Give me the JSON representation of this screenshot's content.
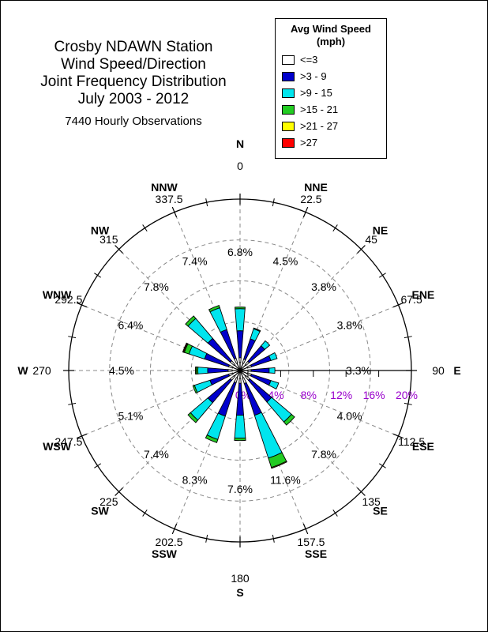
{
  "chart_data": {
    "type": "wind-rose",
    "title_lines": [
      "Crosby NDAWN Station",
      "Wind Speed/Direction",
      "Joint Frequency Distribution",
      "July 2003 - 2012"
    ],
    "subtitle": "7440 Hourly Observations",
    "legend": {
      "title_lines": [
        "Avg Wind Speed",
        "(mph)"
      ],
      "items": [
        {
          "label": "<=3",
          "color": "#ffffff"
        },
        {
          "label": ">3 - 9",
          "color": "#0000cc"
        },
        {
          "label": ">9 - 15",
          "color": "#00e5ee"
        },
        {
          "label": ">15 - 21",
          "color": "#22cc22"
        },
        {
          "label": ">21 - 27",
          "color": "#ffff00"
        },
        {
          "label": ">27",
          "color": "#ff0000"
        }
      ]
    },
    "direction_labels": [
      "N",
      "NNE",
      "NE",
      "ENE",
      "E",
      "ESE",
      "SE",
      "SSE",
      "S",
      "SSW",
      "SW",
      "WSW",
      "W",
      "WNW",
      "NW",
      "NNW"
    ],
    "direction_degrees": [
      "0",
      "22.5",
      "45",
      "67.5",
      "90",
      "112.5",
      "135",
      "157.5",
      "180",
      "202.5",
      "225",
      "247.5",
      "270",
      "292.5",
      "315",
      "337.5"
    ],
    "sector_totals": [
      "6.8%",
      "4.5%",
      "3.8%",
      "3.8%",
      "3.3%",
      "4.0%",
      "7.8%",
      "11.6%",
      "7.6%",
      "8.3%",
      "7.4%",
      "5.1%",
      "4.5%",
      "6.4%",
      "7.8%",
      "7.4%"
    ],
    "radial_ticks": [
      "0%",
      "4%",
      "8%",
      "12%",
      "16%",
      "20%"
    ],
    "rmax": 20,
    "grid": true,
    "sectors": [
      {
        "dir": "N",
        "values": [
          0.6,
          3.3,
          2.7,
          0.2,
          0,
          0
        ]
      },
      {
        "dir": "NNE",
        "values": [
          0.5,
          2.6,
          1.3,
          0.1,
          0,
          0
        ]
      },
      {
        "dir": "NE",
        "values": [
          0.5,
          2.5,
          0.8,
          0,
          0,
          0
        ]
      },
      {
        "dir": "ENE",
        "values": [
          0.5,
          2.5,
          0.8,
          0,
          0,
          0
        ]
      },
      {
        "dir": "E",
        "values": [
          0.4,
          2.2,
          0.7,
          0,
          0,
          0
        ]
      },
      {
        "dir": "ESE",
        "values": [
          0.5,
          2.5,
          1.0,
          0,
          0,
          0
        ]
      },
      {
        "dir": "SE",
        "values": [
          0.6,
          3.5,
          3.2,
          0.5,
          0,
          0
        ]
      },
      {
        "dir": "SSE",
        "values": [
          0.7,
          4.1,
          5.5,
          1.2,
          0.1,
          0
        ]
      },
      {
        "dir": "S",
        "values": [
          0.6,
          3.9,
          2.8,
          0.3,
          0,
          0
        ]
      },
      {
        "dir": "SSW",
        "values": [
          0.6,
          4.3,
          3.0,
          0.4,
          0,
          0
        ]
      },
      {
        "dir": "SW",
        "values": [
          0.6,
          3.6,
          2.8,
          0.4,
          0,
          0
        ]
      },
      {
        "dir": "WSW",
        "values": [
          0.5,
          2.4,
          2.0,
          0.2,
          0,
          0
        ]
      },
      {
        "dir": "W",
        "values": [
          0.5,
          2.5,
          1.2,
          0.2,
          0.1,
          0
        ]
      },
      {
        "dir": "WNW",
        "values": [
          0.5,
          3.1,
          2.0,
          0.6,
          0.1,
          0.1
        ]
      },
      {
        "dir": "NW",
        "values": [
          0.6,
          3.6,
          3.2,
          0.4,
          0,
          0
        ]
      },
      {
        "dir": "NNW",
        "values": [
          0.6,
          3.7,
          2.8,
          0.3,
          0,
          0
        ]
      }
    ]
  }
}
